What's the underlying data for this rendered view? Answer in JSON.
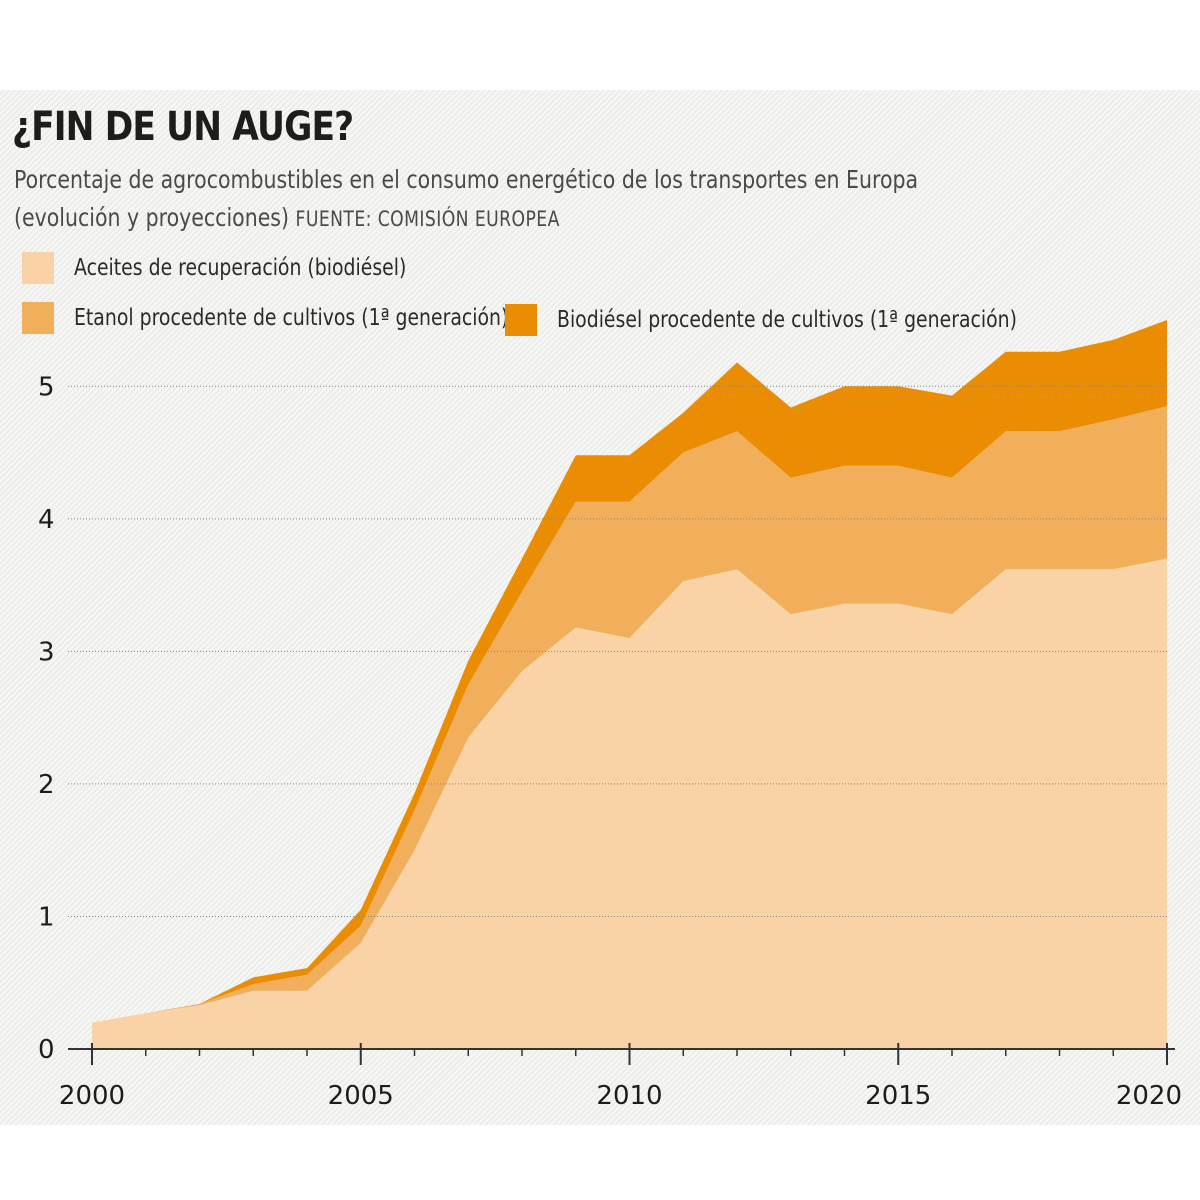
{
  "header": {
    "title": "¿FIN DE UN AUGE?",
    "subtitle_line1": "Porcentaje de agrocombustibles en el consumo energético de los transportes en Europa",
    "subtitle_line2": "(evolución y proyecciones)",
    "source": "FUENTE: COMISIÓN EUROPEA"
  },
  "colors": {
    "aceites": "#f9d3a5",
    "etanol": "#f1af5c",
    "biodiesel": "#ea8d03",
    "axis": "#333333",
    "grid": "#888888"
  },
  "legend": [
    {
      "label": "Aceites de recuperación (biodiésel)",
      "color": "#f9d3a5"
    },
    {
      "label": "Etanol procedente de cultivos (1ª generación)",
      "color": "#f1af5c"
    },
    {
      "label": "Biodiésel procedente de cultivos (1ª generación)",
      "color": "#ea8d03"
    }
  ],
  "chart_data": {
    "type": "area",
    "stacked": true,
    "title": "¿FIN DE UN AUGE?",
    "xlabel": "",
    "ylabel": "",
    "x": [
      2000,
      2001,
      2002,
      2003,
      2004,
      2005,
      2006,
      2007,
      2008,
      2009,
      2010,
      2011,
      2012,
      2013,
      2014,
      2015,
      2016,
      2017,
      2018,
      2019,
      2020
    ],
    "xlim": [
      2000,
      2020
    ],
    "ylim": [
      0,
      5.5
    ],
    "xticks": [
      2000,
      2005,
      2010,
      2015,
      2020
    ],
    "yticks": [
      0,
      1,
      2,
      3,
      4,
      5
    ],
    "grid": true,
    "series": [
      {
        "name": "Aceites de recuperación (biodiésel)",
        "color": "#f9d3a5",
        "values": [
          0.2,
          0.27,
          0.33,
          0.44,
          0.44,
          0.8,
          1.5,
          2.35,
          2.85,
          3.18,
          3.1,
          3.53,
          3.62,
          3.28,
          3.36,
          3.36,
          3.28,
          3.62,
          3.62,
          3.62,
          3.7
        ]
      },
      {
        "name": "Etanol procedente de cultivos (1ª generación)",
        "color": "#f1af5c",
        "values": [
          0.0,
          0.0,
          0.01,
          0.05,
          0.12,
          0.13,
          0.3,
          0.4,
          0.6,
          0.95,
          1.03,
          0.97,
          1.04,
          1.03,
          1.04,
          1.04,
          1.03,
          1.04,
          1.04,
          1.13,
          1.15
        ]
      },
      {
        "name": "Biodiésel procedente de cultivos (1ª generación)",
        "color": "#ea8d03",
        "values": [
          0.0,
          0.0,
          0.0,
          0.05,
          0.05,
          0.12,
          0.13,
          0.18,
          0.25,
          0.35,
          0.35,
          0.3,
          0.52,
          0.53,
          0.6,
          0.6,
          0.62,
          0.6,
          0.6,
          0.6,
          0.65
        ]
      }
    ]
  }
}
